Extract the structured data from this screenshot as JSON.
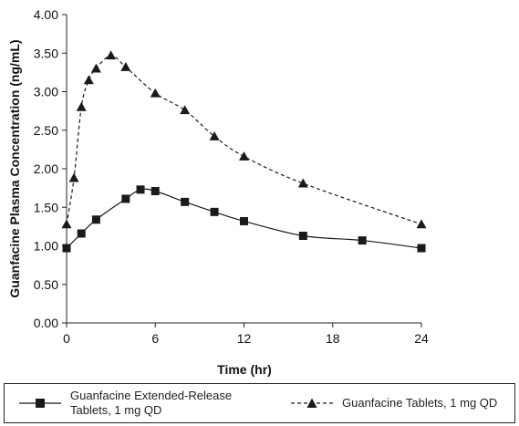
{
  "chart_data": {
    "type": "line",
    "title": "",
    "xlabel": "Time (hr)",
    "ylabel": "Guanfacine Plasma Concentration (ng/mL)",
    "xlim": [
      0,
      24
    ],
    "ylim": [
      0,
      4
    ],
    "x_ticks": [
      "0",
      "6",
      "12",
      "18",
      "24"
    ],
    "x_tick_values": [
      0,
      6,
      12,
      18,
      24
    ],
    "y_ticks": [
      "0.00",
      "0.50",
      "1.00",
      "1.50",
      "2.00",
      "2.50",
      "3.00",
      "3.50",
      "4.00"
    ],
    "y_tick_values": [
      0,
      0.5,
      1,
      1.5,
      2,
      2.5,
      3,
      3.5,
      4
    ],
    "grid": false,
    "legend_position": "bottom",
    "series": [
      {
        "name": "Guanfacine Extended-Release Tablets, 1 mg QD",
        "line_style": "solid",
        "marker": "square",
        "color": "#1a1a1a",
        "x": [
          0,
          1,
          2,
          4,
          5,
          6,
          8,
          10,
          12,
          16,
          20,
          24
        ],
        "y": [
          0.97,
          1.16,
          1.34,
          1.61,
          1.73,
          1.71,
          1.57,
          1.44,
          1.32,
          1.13,
          1.07,
          0.97
        ]
      },
      {
        "name": "Guanfacine Tablets, 1 mg QD",
        "line_style": "dashed",
        "marker": "triangle",
        "color": "#1a1a1a",
        "x": [
          0,
          0.5,
          1,
          1.5,
          2,
          3,
          4,
          6,
          8,
          10,
          12,
          16,
          24
        ],
        "y": [
          1.28,
          1.88,
          2.8,
          3.15,
          3.3,
          3.47,
          3.32,
          2.98,
          2.76,
          2.42,
          2.16,
          1.81,
          1.28
        ]
      }
    ]
  }
}
